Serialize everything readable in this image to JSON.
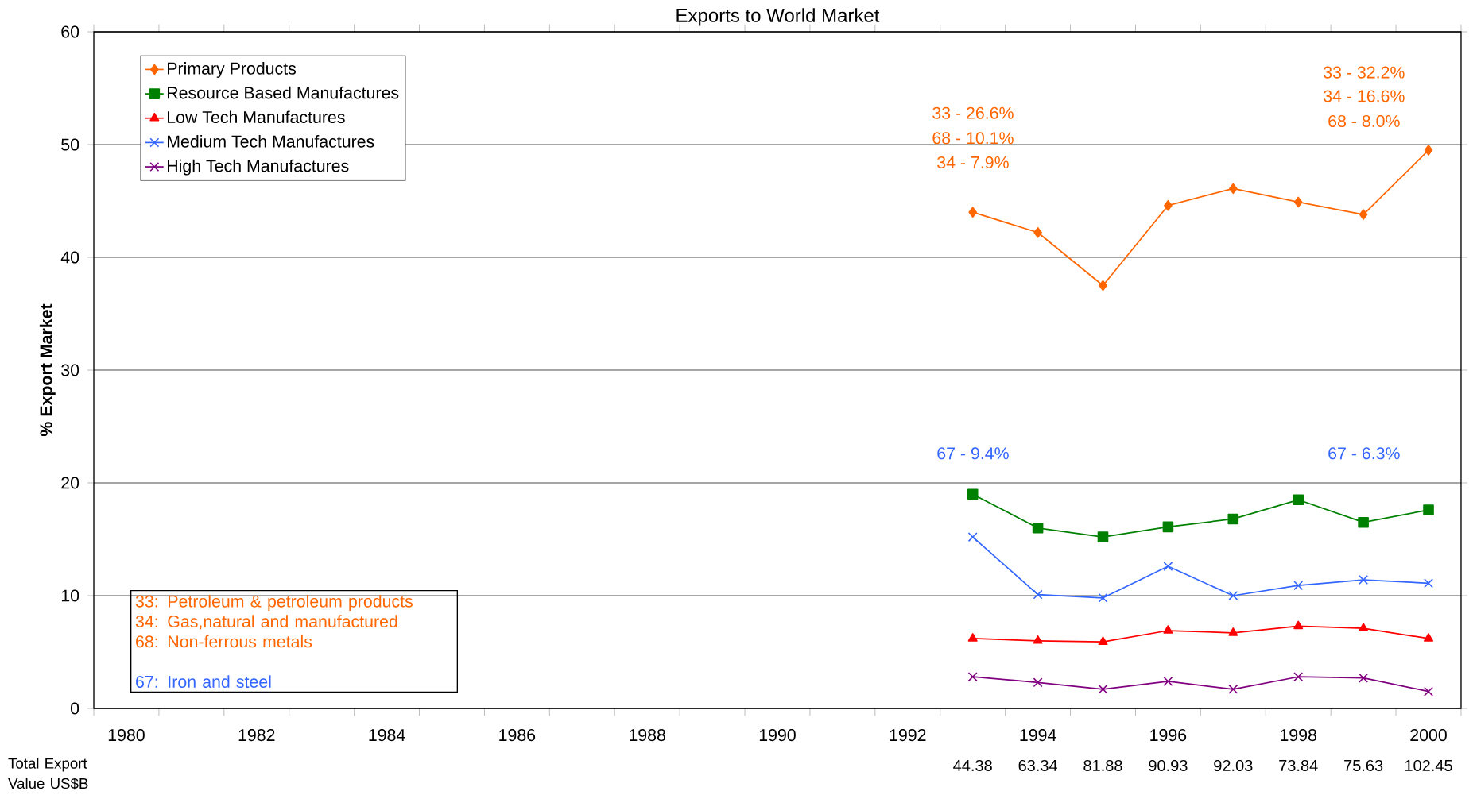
{
  "chart_data": {
    "type": "line",
    "title": "Exports to World Market",
    "ylabel": "% Export Market",
    "x": [
      1993,
      1994,
      1995,
      1996,
      1997,
      1998,
      1999,
      2000
    ],
    "series": [
      {
        "name": "Primary Products",
        "color": "#ff6600",
        "marker": "diamond",
        "values": [
          44.0,
          42.2,
          37.5,
          44.6,
          46.1,
          44.9,
          43.8,
          49.5
        ]
      },
      {
        "name": "Resource Based Manufactures",
        "color": "#008000",
        "marker": "square",
        "values": [
          19.0,
          16.0,
          15.2,
          16.1,
          16.8,
          18.5,
          16.5,
          17.6
        ]
      },
      {
        "name": "Low Tech Manufactures",
        "color": "#ff0000",
        "marker": "triangle",
        "values": [
          6.2,
          6.0,
          5.9,
          6.9,
          6.7,
          7.3,
          7.1,
          6.2
        ]
      },
      {
        "name": "Medium Tech Manufactures",
        "color": "#3366ff",
        "marker": "cross",
        "values": [
          15.2,
          10.1,
          9.8,
          12.6,
          10.0,
          10.9,
          11.4,
          11.1
        ]
      },
      {
        "name": "High Tech Manufactures",
        "color": "#800080",
        "marker": "cross",
        "values": [
          2.8,
          2.3,
          1.7,
          2.4,
          1.7,
          2.8,
          2.7,
          1.5
        ]
      }
    ],
    "xlim": [
      1979.5,
      2000.5
    ],
    "xticks": [
      1980,
      1982,
      1984,
      1986,
      1988,
      1990,
      1992,
      1994,
      1996,
      1998,
      2000,
      {
        "value": 1979.5,
        "label": null
      },
      {
        "value": 1980.5,
        "label": null
      },
      {
        "value": 1981.5,
        "label": null
      },
      {
        "value": 1982.5,
        "label": null
      },
      {
        "value": 1983.5,
        "label": null
      },
      {
        "value": 1984.5,
        "label": null
      },
      {
        "value": 1985.5,
        "label": null
      },
      {
        "value": 1986.5,
        "label": null
      },
      {
        "value": 1987.5,
        "label": null
      },
      {
        "value": 1988.5,
        "label": null
      },
      {
        "value": 1989.5,
        "label": null
      },
      {
        "value": 1990.5,
        "label": null
      },
      {
        "value": 1991.5,
        "label": null
      },
      {
        "value": 1992.5,
        "label": null
      },
      {
        "value": 1993.5,
        "label": null
      },
      {
        "value": 1994.5,
        "label": null
      },
      {
        "value": 1995.5,
        "label": null
      },
      {
        "value": 1996.5,
        "label": null
      },
      {
        "value": 1997.5,
        "label": null
      },
      {
        "value": 1998.5,
        "label": null
      },
      {
        "value": 1999.5,
        "label": null
      },
      {
        "value": 2000.5,
        "label": null
      }
    ],
    "ylim": [
      0,
      60
    ],
    "yticks": [
      0,
      10,
      20,
      30,
      40,
      50,
      60
    ],
    "grid": "y",
    "legend": "top left",
    "line_style": "solid",
    "annotations": [
      "33 - 26.6%",
      "68 - 10.1%",
      "34 -  7.9%",
      "33 - 32.2%",
      "34 -  16.6%",
      "68 - 8.0%",
      "67 - 9.4%",
      "67 - 6.3%",
      "44.38",
      "63.34",
      "81.88",
      "90.93",
      "92.03",
      "73.84",
      "75.63",
      "102.45",
      "33: Petroleum & petroleum products",
      "34: Gas,natural and manufactured",
      "68: Non-ferrous metals",
      "67: Iron and steel",
      "Total Export Value US$B"
    ]
  }
}
